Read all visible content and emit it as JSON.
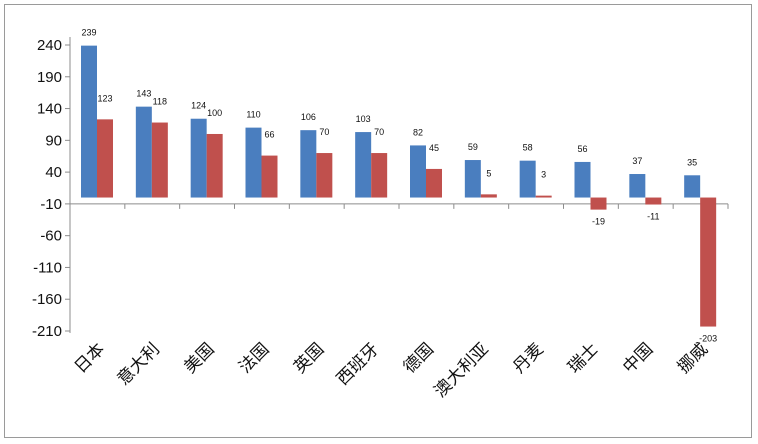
{
  "chart_data": {
    "type": "bar",
    "categories": [
      "日本",
      "意大利",
      "美国",
      "法国",
      "英国",
      "西班牙",
      "德国",
      "澳大利亚",
      "丹麦",
      "瑞士",
      "中国",
      "挪威"
    ],
    "series": [
      {
        "values": [
          239,
          143,
          124,
          110,
          106,
          103,
          82,
          59,
          58,
          56,
          37,
          35
        ],
        "color": "#4a7ebf"
      },
      {
        "values": [
          123,
          118,
          100,
          66,
          70,
          70,
          45,
          5,
          3,
          -19,
          -11,
          -203
        ],
        "color": "#c0504d"
      }
    ],
    "y_ticks": [
      "240",
      "190",
      "140",
      "90",
      "40",
      "-10",
      "-60",
      "-110",
      "-160",
      "-210"
    ],
    "ylim": [
      -210,
      240
    ],
    "grid": false,
    "legend": "none"
  }
}
